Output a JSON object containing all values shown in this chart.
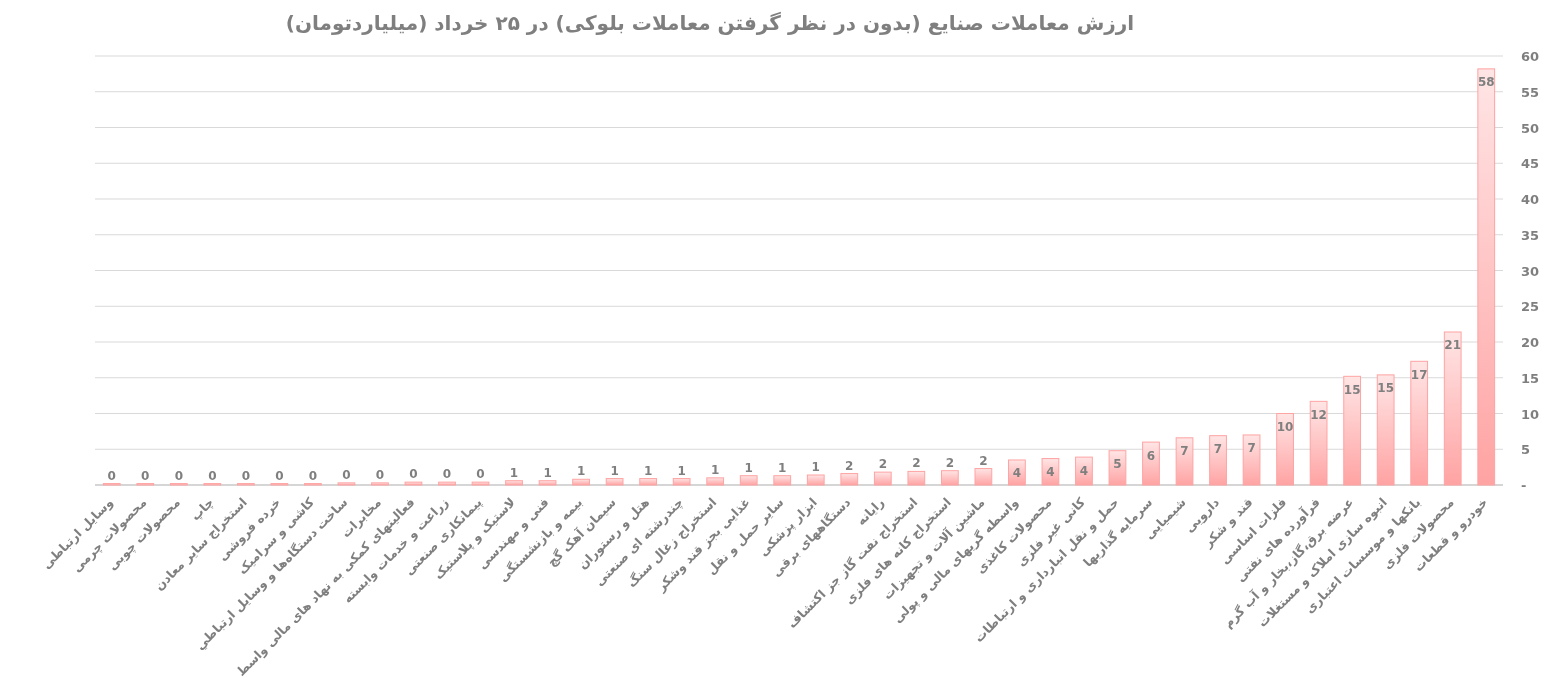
{
  "chart_data": {
    "type": "bar",
    "title": "ارزش معاملات صنایع (بدون در نظر گرفتن معاملات بلوکی) در ۲۵ خرداد (میلیاردتومان)",
    "categories": [
      "وسایل ارتباطی",
      "محصولات چرمی",
      "محصولات چوبی",
      "چاپ",
      "استخراج سایر معادن",
      "خرده فروشی",
      "کاشی و سرامیک",
      "ساخت دستگاه‌ها و وسایل ارتباطي",
      "مخابرات",
      "فعالیتهای کمکی به نهاد های مالی واسط",
      "زراعت و خدمات وابسته",
      "پیمانکاری صنعتی",
      "لاستیک و پلاستیک",
      "فنی و مهندسی",
      "بیمه و بازنشستگی",
      "سیمان آهک گچ",
      "هتل و رستوران",
      "چندرشته ای صنعتی",
      "استخراج زغال سنگ",
      "غذایی بجز قند وشکر",
      "سایر حمل و نقل",
      "ابزار پزشکی",
      "دستگاههای برقی",
      "رایانه",
      "استخراج نفت گاز جز اکتشاف",
      "استخراج کانه های فلزی",
      "ماشین آلات و تجهیزات",
      "واسطه گریهای مالی و پولی",
      "محصولات کاغذی",
      "کانی غیر فلزی",
      "حمل و نقل انبارداری و ارتباطات",
      "سرمایه گذاریها",
      "شیمیایی",
      "دارویی",
      "قند و شکر",
      "فلزات اساسی",
      "فرآورده های نفتی",
      "عرضه برق،گاز،بخار و آب گرم",
      "انبوه سازی املاک و مستغلات",
      "بانکها و موسسات اعتباری",
      "محصولات فلزی",
      "خودرو و قطعات"
    ],
    "values": [
      0.2,
      0.2,
      0.2,
      0.2,
      0.2,
      0.2,
      0.2,
      0.3,
      0.3,
      0.4,
      0.4,
      0.4,
      0.6,
      0.6,
      0.8,
      0.9,
      0.9,
      0.9,
      1.0,
      1.3,
      1.3,
      1.4,
      1.6,
      1.8,
      1.9,
      2.0,
      2.3,
      3.5,
      3.7,
      3.9,
      4.8,
      6.0,
      6.6,
      6.9,
      7.0,
      10.0,
      11.7,
      15.2,
      15.4,
      17.3,
      21.4,
      58.2
    ],
    "value_labels": [
      "0",
      "0",
      "0",
      "0",
      "0",
      "0",
      "0",
      "0",
      "0",
      "0",
      "0",
      "0",
      "1",
      "1",
      "1",
      "1",
      "1",
      "1",
      "1",
      "1",
      "1",
      "1",
      "2",
      "2",
      "2",
      "2",
      "2",
      "4",
      "4",
      "4",
      "5",
      "6",
      "7",
      "7",
      "7",
      "10",
      "12",
      "15",
      "15",
      "17",
      "21",
      "58"
    ],
    "color": "#ffa3a3",
    "ylim": [
      0,
      60
    ],
    "yticks": [
      {
        "value": 0,
        "label": "-"
      },
      5,
      10,
      15,
      20,
      25,
      30,
      35,
      40,
      45,
      50,
      55,
      60
    ],
    "grid": "y"
  }
}
